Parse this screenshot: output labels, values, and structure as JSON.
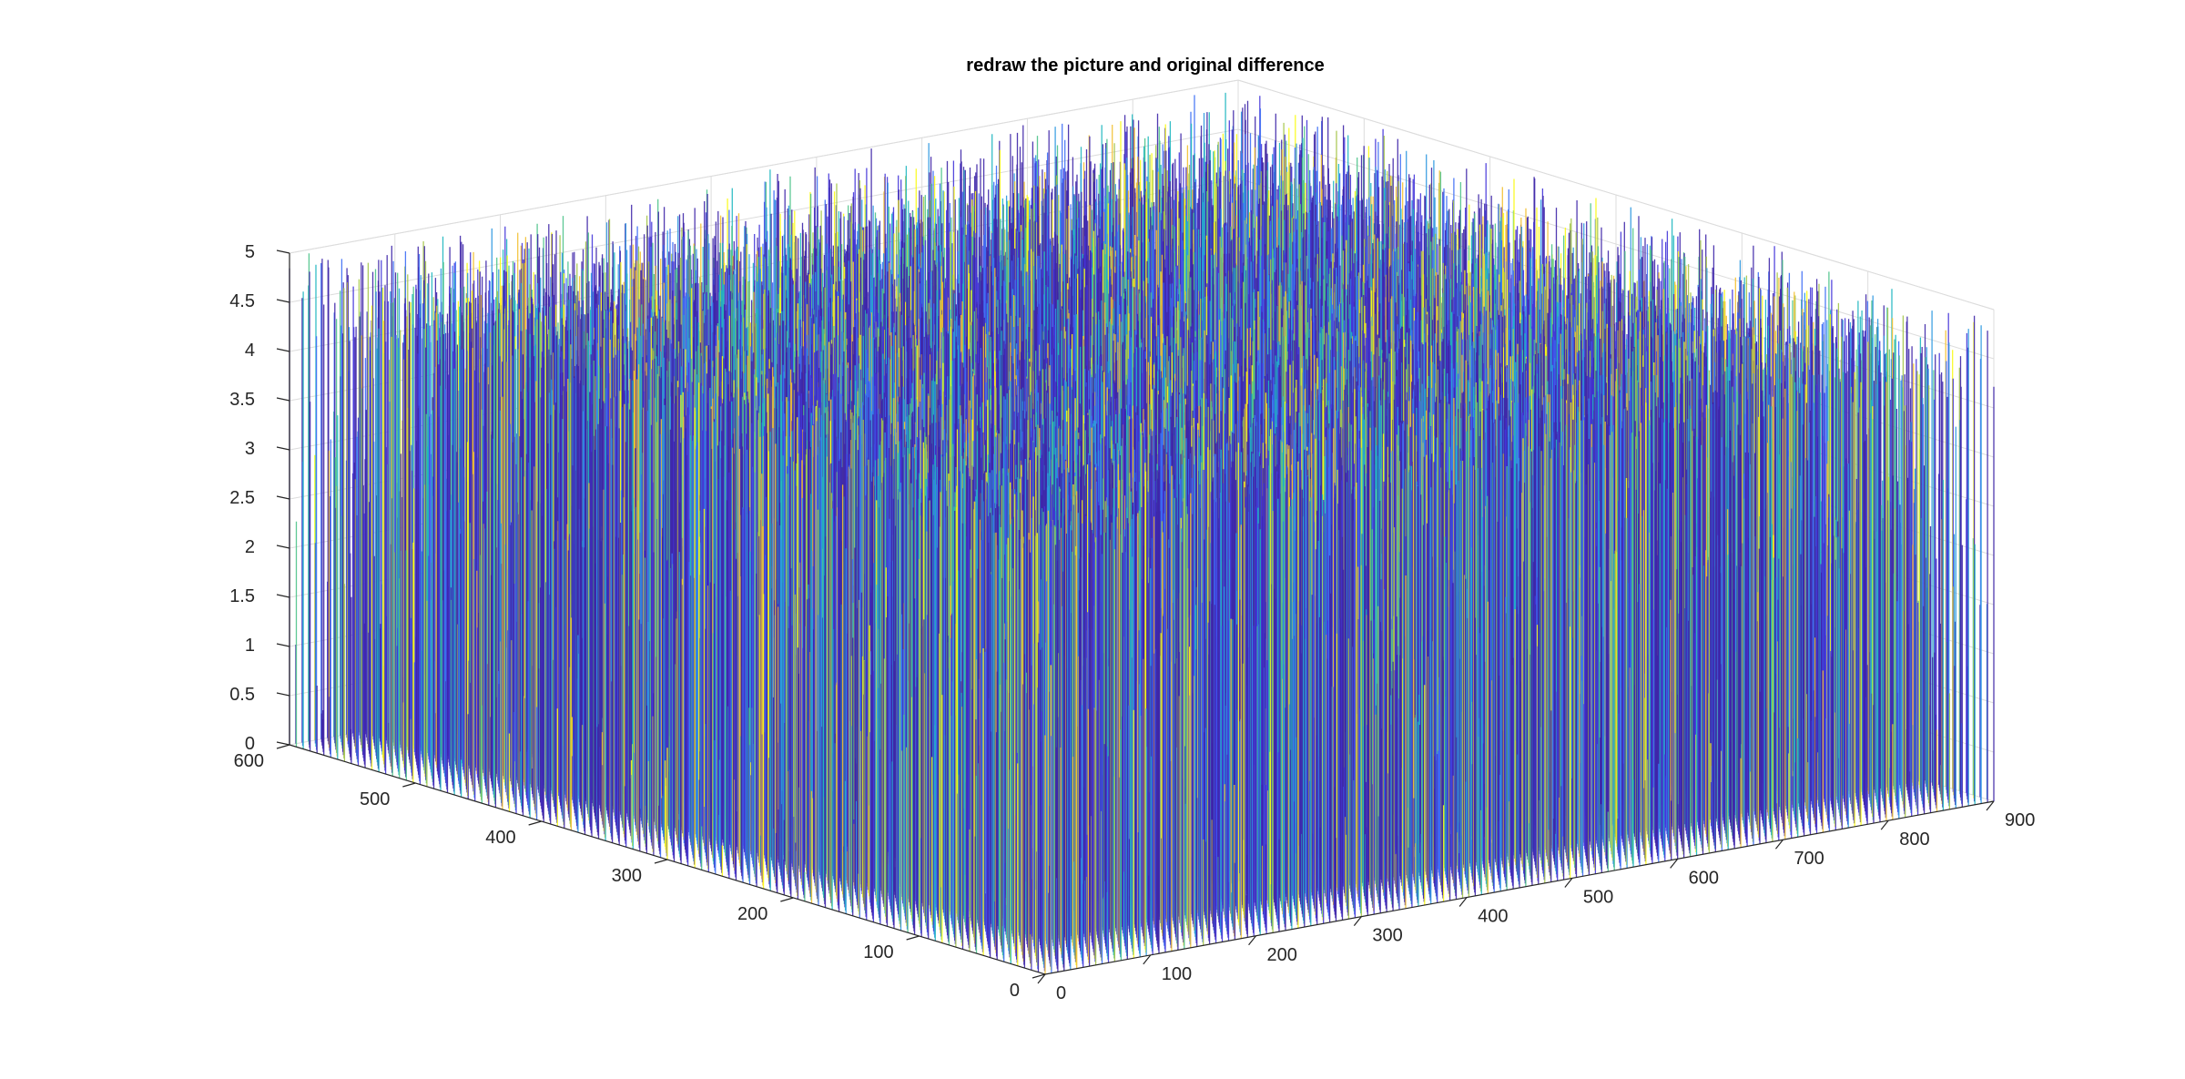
{
  "chart_data": {
    "type": "surface3d",
    "title": "redraw the picture and original difference",
    "xlabel": "",
    "ylabel": "",
    "zlabel": "",
    "x_ticks": [
      0,
      100,
      200,
      300,
      400,
      500,
      600,
      700,
      800,
      900
    ],
    "y_ticks": [
      0,
      100,
      200,
      300,
      400,
      500,
      600
    ],
    "z_ticks": [
      "0",
      "0.5",
      "1",
      "1.5",
      "2",
      "2.5",
      "3",
      "3.5",
      "4",
      "4.5",
      "5"
    ],
    "xlim": [
      0,
      900
    ],
    "ylim": [
      0,
      600
    ],
    "zlim": [
      0,
      5
    ],
    "grid": true,
    "colormap": "parula",
    "colormap_colors": [
      "#3e26a8",
      "#4435d9",
      "#3d6ef5",
      "#2d98e0",
      "#1fb7c0",
      "#4cc38a",
      "#a4c54a",
      "#f2c031",
      "#f9fb15"
    ],
    "value_distribution": "dense vertical spikes; values span 0 to 5"
  }
}
